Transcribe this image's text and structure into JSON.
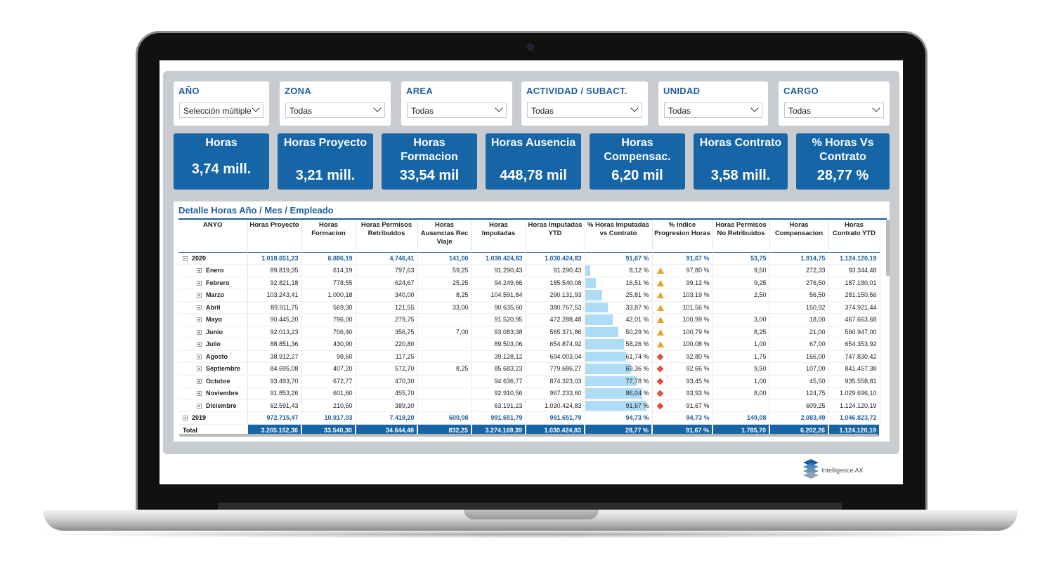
{
  "slicers": [
    {
      "title": "AÑO",
      "value": "Selección múltiple"
    },
    {
      "title": "ZONA",
      "value": "Todas"
    },
    {
      "title": "AREA",
      "value": "Todas"
    },
    {
      "title": "ACTIVIDAD / SUBACT.",
      "value": "Todas"
    },
    {
      "title": "UNIDAD",
      "value": "Todas"
    },
    {
      "title": "CARGO",
      "value": "Todas"
    }
  ],
  "cards": [
    {
      "label": "Horas",
      "value": "3,74 mill."
    },
    {
      "label": "Horas Proyecto",
      "value": "3,21 mill."
    },
    {
      "label": "Horas Formacion",
      "value": "33,54 mil"
    },
    {
      "label": "Horas Ausencia",
      "value": "448,78 mil"
    },
    {
      "label": "Horas Compensac.",
      "value": "6,20 mil"
    },
    {
      "label": "Horas Contrato",
      "value": "3,58 mill."
    },
    {
      "label": "% Horas Vs Contrato",
      "value": "28,77 %"
    }
  ],
  "table": {
    "title": "Detalle Horas Año / Mes / Empleado",
    "columns": [
      "ANYO",
      "Horas Proyecto",
      "Horas Formacion",
      "Horas Permisos Retribuidos",
      "Horas Ausencias Rec Viaje",
      "Horas Imputadas",
      "Horas Imputadas YTD",
      "% Horas Imputadas vs Contrato",
      "% Indice Progresion Horas",
      "Horas Permisos No Retribuidos",
      "Horas Compensacion",
      "Horas Contrato YTD"
    ],
    "year_2020": [
      "2020",
      "1.018.651,23",
      "6.886,19",
      "4.746,41",
      "141,00",
      "1.030.424,83",
      "1.030.424,83",
      "91,67 %",
      "91,67 %",
      "53,75",
      "1.914,75",
      "1.124.120,19"
    ],
    "months": [
      {
        "cells": [
          "Enero",
          "89.819,35",
          "614,19",
          "797,63",
          "59,25",
          "91.290,43",
          "91.290,43",
          "8,12 %",
          "97,80 %",
          "9,50",
          "272,33",
          "93.344,48"
        ],
        "pct": 8.12,
        "indicator": "warning"
      },
      {
        "cells": [
          "Febrero",
          "92.821,18",
          "778,55",
          "624,67",
          "25,25",
          "94.249,66",
          "185.540,08",
          "16,51 %",
          "99,12 %",
          "9,25",
          "276,50",
          "187.180,01"
        ],
        "pct": 16.51,
        "indicator": "warning"
      },
      {
        "cells": [
          "Marzo",
          "103.243,41",
          "1.000,18",
          "340,00",
          "8,25",
          "104.591,84",
          "290.131,93",
          "25,81 %",
          "103,19 %",
          "2,50",
          "56,50",
          "281.150,56"
        ],
        "pct": 25.81,
        "indicator": "warning"
      },
      {
        "cells": [
          "Abril",
          "89.911,75",
          "569,30",
          "121,55",
          "33,00",
          "90.635,60",
          "380.767,53",
          "33,87 %",
          "101,56 %",
          "",
          "150,92",
          "374.921,44"
        ],
        "pct": 33.87,
        "indicator": "warning"
      },
      {
        "cells": [
          "Mayo",
          "90.445,20",
          "796,00",
          "279,75",
          "",
          "91.520,95",
          "472.288,48",
          "42,01 %",
          "100,99 %",
          "3,00",
          "18,00",
          "467.663,68"
        ],
        "pct": 42.01,
        "indicator": "warning"
      },
      {
        "cells": [
          "Junio",
          "92.013,23",
          "706,40",
          "356,75",
          "7,00",
          "93.083,38",
          "565.371,86",
          "50,29 %",
          "100,79 %",
          "8,25",
          "21,00",
          "560.947,00"
        ],
        "pct": 50.29,
        "indicator": "warning"
      },
      {
        "cells": [
          "Julio",
          "88.851,36",
          "430,90",
          "220,80",
          "",
          "89.503,06",
          "654.874,92",
          "58,26 %",
          "100,08 %",
          "1,00",
          "67,00",
          "654.353,92"
        ],
        "pct": 58.26,
        "indicator": "warning"
      },
      {
        "cells": [
          "Agosto",
          "38.912,27",
          "98,60",
          "117,25",
          "",
          "39.128,12",
          "694.003,04",
          "61,74 %",
          "92,80 %",
          "1,75",
          "166,00",
          "747.830,42"
        ],
        "pct": 61.74,
        "indicator": "alert"
      },
      {
        "cells": [
          "Septiembre",
          "84.695,08",
          "407,20",
          "572,70",
          "8,25",
          "85.683,23",
          "779.686,27",
          "69,36 %",
          "92,66 %",
          "9,50",
          "107,00",
          "841.457,38"
        ],
        "pct": 69.36,
        "indicator": "alert"
      },
      {
        "cells": [
          "Octubre",
          "93.493,70",
          "672,77",
          "470,30",
          "",
          "94.636,77",
          "874.323,03",
          "77,78 %",
          "93,45 %",
          "1,00",
          "45,50",
          "935.558,81"
        ],
        "pct": 77.78,
        "indicator": "alert"
      },
      {
        "cells": [
          "Noviembre",
          "91.853,26",
          "601,60",
          "455,70",
          "",
          "92.910,56",
          "967.233,60",
          "86,04 %",
          "93,93 %",
          "8,00",
          "124,75",
          "1.029.696,10"
        ],
        "pct": 86.04,
        "indicator": "alert"
      },
      {
        "cells": [
          "Diciembre",
          "62.591,43",
          "210,50",
          "389,30",
          "",
          "63.191,23",
          "1.030.424,83",
          "91,67 %",
          "91,67 %",
          "",
          "609,25",
          "1.124.120,19"
        ],
        "pct": 91.67,
        "indicator": "alert"
      }
    ],
    "year_2019": [
      "2019",
      "972.715,47",
      "10.917,03",
      "7.419,20",
      "600,08",
      "991.651,79",
      "991.651,79",
      "94,73 %",
      "94,73 %",
      "149,08",
      "2.083,49",
      "1.046.823,72"
    ],
    "total": [
      "Total",
      "3.205.152,36",
      "33.540,30",
      "34.644,48",
      "832,25",
      "3.274.169,39",
      "1.030.424,83",
      "28,77 %",
      "91,67 %",
      "1.785,70",
      "6.202,26",
      "1.124.120,19"
    ]
  },
  "logo": {
    "text": "Intelligence AX",
    "icon": "stacked-layers-logo-icon"
  },
  "colors": {
    "accent": "#1565a7",
    "title": "#1f5f9e",
    "bar": "#aedcf5",
    "warning": "#e6a229",
    "alert": "#e84c3d"
  }
}
